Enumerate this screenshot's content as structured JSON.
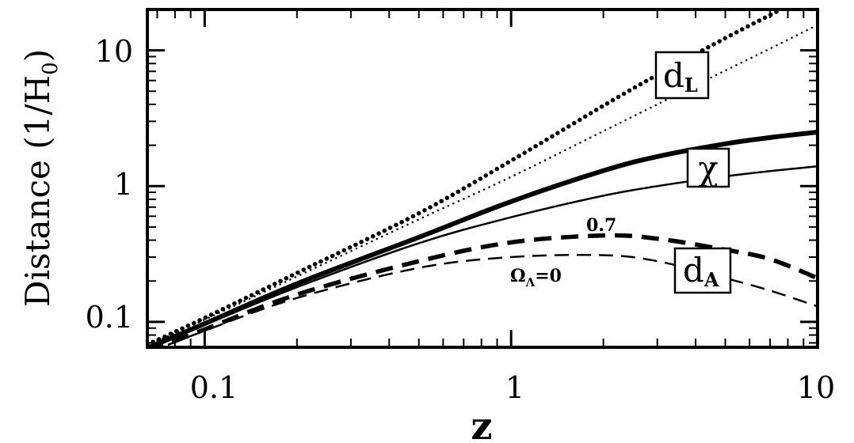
{
  "chart_data": {
    "type": "line",
    "xlabel": "z",
    "ylabel": "Distance (1/H0)",
    "ylabel_main": "Distance (1/H",
    "ylabel_sub": "0",
    "ylabel_close": ")",
    "xscale": "log",
    "yscale": "log",
    "xlim": [
      0.065,
      10
    ],
    "ylim": [
      0.065,
      20
    ],
    "x_ticks": [
      0.1,
      1,
      10
    ],
    "x_tick_labels": [
      "0.1",
      "1",
      "10"
    ],
    "y_ticks": [
      0.1,
      1,
      10
    ],
    "y_tick_labels": [
      "0.1",
      "1",
      "10"
    ],
    "grid": false,
    "legend": "none",
    "series": [
      {
        "group": "dL",
        "omega_lambda": 0.7,
        "style": "dotted-thick",
        "x": [
          0.065,
          0.1,
          0.2,
          0.5,
          1,
          2,
          3,
          5,
          7,
          10
        ],
        "y": [
          0.068,
          0.107,
          0.229,
          0.631,
          1.54,
          3.91,
          6.6,
          12.3,
          18.2,
          27.5
        ]
      },
      {
        "group": "dL",
        "omega_lambda": 0,
        "style": "dotted-thin",
        "x": [
          0.065,
          0.1,
          0.2,
          0.5,
          1,
          2,
          3,
          5,
          7,
          10
        ],
        "y": [
          0.067,
          0.104,
          0.216,
          0.569,
          1.17,
          2.54,
          4.0,
          7.1,
          10.3,
          15.4
        ]
      },
      {
        "group": "chi",
        "omega_lambda": 0.7,
        "style": "solid-thick",
        "x": [
          0.065,
          0.1,
          0.2,
          0.5,
          1,
          2,
          3,
          5,
          7,
          10
        ],
        "y": [
          0.064,
          0.097,
          0.191,
          0.42,
          0.77,
          1.3,
          1.65,
          2.05,
          2.28,
          2.5
        ]
      },
      {
        "group": "chi",
        "omega_lambda": 0,
        "style": "solid-thin",
        "x": [
          0.065,
          0.1,
          0.2,
          0.5,
          1,
          2,
          3,
          5,
          7,
          10
        ],
        "y": [
          0.063,
          0.095,
          0.18,
          0.38,
          0.59,
          0.85,
          1.0,
          1.18,
          1.29,
          1.4
        ]
      },
      {
        "group": "dA",
        "omega_lambda": 0.7,
        "style": "dashed-thick",
        "x": [
          0.065,
          0.1,
          0.2,
          0.5,
          1,
          2,
          3,
          5,
          7,
          10
        ],
        "y": [
          0.06,
          0.088,
          0.159,
          0.28,
          0.385,
          0.433,
          0.41,
          0.34,
          0.29,
          0.21
        ]
      },
      {
        "group": "dA",
        "omega_lambda": 0,
        "style": "dashed-thin",
        "x": [
          0.065,
          0.1,
          0.2,
          0.5,
          1,
          2,
          3,
          5,
          7,
          10
        ],
        "y": [
          0.059,
          0.086,
          0.15,
          0.25,
          0.3,
          0.31,
          0.28,
          0.21,
          0.17,
          0.13
        ]
      }
    ],
    "labels": {
      "dL_main": "d",
      "dL_sub": "L",
      "chi": "χ",
      "dA_main": "d",
      "dA_sub": "A",
      "omega_main": "Ω",
      "omega_sub": "Λ",
      "omega_value": "=0",
      "omega_07": "0.7"
    }
  }
}
